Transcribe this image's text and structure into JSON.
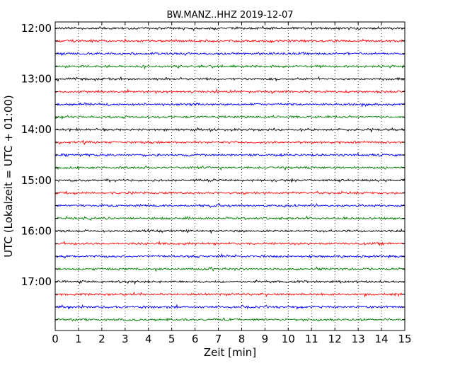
{
  "chart_data": {
    "type": "line",
    "title": "BW.MANZ..HHZ 2019-12-07",
    "xlabel": "Zeit  [min]",
    "ylabel": "UTC (Lokalzeit = UTC + 01:00)",
    "xlim": [
      0,
      15
    ],
    "x_ticks": [
      "0",
      "1",
      "2",
      "3",
      "4",
      "5",
      "6",
      "7",
      "8",
      "9",
      "10",
      "11",
      "12",
      "13",
      "14",
      "15"
    ],
    "y_ticks": [
      "12:00",
      "13:00",
      "14:00",
      "15:00",
      "16:00",
      "17:00"
    ],
    "grid": "vertical dotted",
    "trace_colors": [
      "#000000",
      "#ff0000",
      "#0000ff",
      "#008000"
    ],
    "traces": [
      {
        "start": "12:00",
        "color": "#000000"
      },
      {
        "start": "12:15",
        "color": "#ff0000"
      },
      {
        "start": "12:30",
        "color": "#0000ff"
      },
      {
        "start": "12:45",
        "color": "#008000"
      },
      {
        "start": "13:00",
        "color": "#000000"
      },
      {
        "start": "13:15",
        "color": "#ff0000"
      },
      {
        "start": "13:30",
        "color": "#0000ff"
      },
      {
        "start": "13:45",
        "color": "#008000"
      },
      {
        "start": "14:00",
        "color": "#000000"
      },
      {
        "start": "14:15",
        "color": "#ff0000"
      },
      {
        "start": "14:30",
        "color": "#0000ff"
      },
      {
        "start": "14:45",
        "color": "#008000"
      },
      {
        "start": "15:00",
        "color": "#000000"
      },
      {
        "start": "15:15",
        "color": "#ff0000"
      },
      {
        "start": "15:30",
        "color": "#0000ff"
      },
      {
        "start": "15:45",
        "color": "#008000"
      },
      {
        "start": "16:00",
        "color": "#000000"
      },
      {
        "start": "16:15",
        "color": "#ff0000"
      },
      {
        "start": "16:30",
        "color": "#0000ff"
      },
      {
        "start": "16:45",
        "color": "#008000"
      },
      {
        "start": "17:00",
        "color": "#000000"
      },
      {
        "start": "17:15",
        "color": "#ff0000"
      },
      {
        "start": "17:30",
        "color": "#0000ff"
      },
      {
        "start": "17:45",
        "color": "#008000"
      }
    ]
  }
}
